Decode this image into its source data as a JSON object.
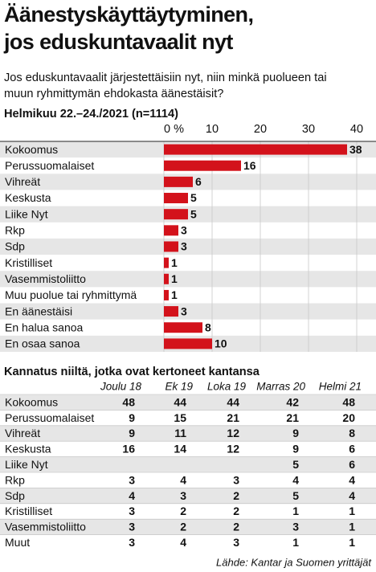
{
  "chart_data": {
    "type": "bar",
    "orientation": "horizontal",
    "title": [
      "Äänestyskäyttäytyminen,",
      "jos eduskuntavaalit nyt"
    ],
    "subtitle": [
      "Jos eduskuntavaalit järjestettäisiin nyt, niin minkä puolueen tai",
      "muun ryhmittymän ehdokasta äänestäisit?"
    ],
    "caption": "Helmikuu 22.–24./2021 (n=1114)",
    "categories": [
      "Kokoomus",
      "Perussuomalaiset",
      "Vihreät",
      "Keskusta",
      "Liike Nyt",
      "Rkp",
      "Sdp",
      "Kristilliset",
      "Vasemmistoliitto",
      "Muu puolue tai ryhmittymä",
      "En äänestäisi",
      "En halua sanoa",
      "En osaa sanoa"
    ],
    "values": [
      38,
      16,
      6,
      5,
      5,
      3,
      3,
      1,
      1,
      1,
      3,
      8,
      10
    ],
    "color": "#d3121b",
    "xlim": [
      0,
      40
    ],
    "xticks": [
      {
        "value": 0,
        "label": "0 %"
      },
      10,
      20,
      30,
      40
    ],
    "grid": true
  },
  "table": {
    "title": "Kannatus niiltä, jotka ovat kertoneet kantansa",
    "columns": [
      "Joulu 18",
      "Ek 19",
      "Loka 19",
      "Marras 20",
      "Helmi 21"
    ],
    "rows": [
      [
        "Kokoomus",
        48,
        44,
        44,
        42,
        48
      ],
      [
        "Perussuomalaiset",
        9,
        15,
        21,
        21,
        20
      ],
      [
        "Vihreät",
        9,
        11,
        12,
        9,
        8
      ],
      [
        "Keskusta",
        16,
        14,
        12,
        9,
        6
      ],
      [
        "Liike Nyt",
        null,
        null,
        null,
        5,
        6
      ],
      [
        "Rkp",
        3,
        4,
        3,
        4,
        4
      ],
      [
        "Sdp",
        4,
        3,
        2,
        5,
        4
      ],
      [
        "Kristilliset",
        3,
        2,
        2,
        1,
        1
      ],
      [
        "Vasemmistoliitto",
        3,
        2,
        2,
        3,
        1
      ],
      [
        "Muut",
        3,
        4,
        3,
        1,
        1
      ]
    ]
  },
  "source": "Lähde: Kantar ja Suomen yrittäjät"
}
